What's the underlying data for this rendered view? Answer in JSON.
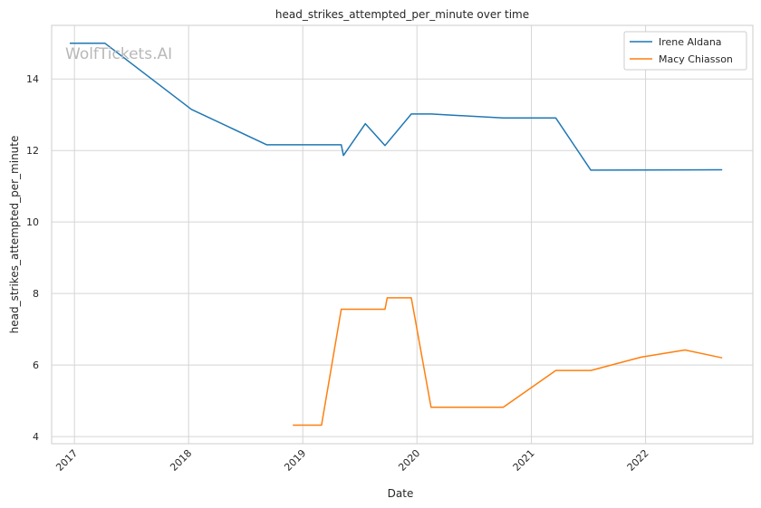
{
  "chart_data": {
    "type": "line",
    "title": "head_strikes_attempted_per_minute over time",
    "xlabel": "Date",
    "ylabel": "head_strikes_attempted_per_minute",
    "watermark": "WolfTickets.AI",
    "x_ticks": [
      "2017",
      "2018",
      "2019",
      "2020",
      "2021",
      "2022"
    ],
    "y_ticks": [
      4,
      6,
      8,
      10,
      12,
      14
    ],
    "xlim": [
      "2016-10-20",
      "2022-12-10"
    ],
    "ylim": [
      3.8,
      15.5
    ],
    "grid": true,
    "legend_position": "top-right",
    "series": [
      {
        "name": "Irene Aldana",
        "color": "#1f77b4",
        "points": [
          [
            "2016-12-17",
            15.0
          ],
          [
            "2017-04-08",
            15.0
          ],
          [
            "2018-01-10",
            13.15
          ],
          [
            "2018-09-08",
            12.16
          ],
          [
            "2019-05-04",
            12.16
          ],
          [
            "2019-05-11",
            11.86
          ],
          [
            "2019-07-20",
            12.75
          ],
          [
            "2019-09-21",
            12.14
          ],
          [
            "2019-12-14",
            13.02
          ],
          [
            "2020-02-15",
            13.02
          ],
          [
            "2020-10-03",
            12.91
          ],
          [
            "2021-03-20",
            12.91
          ],
          [
            "2021-07-10",
            11.45
          ],
          [
            "2022-09-03",
            11.46
          ]
        ]
      },
      {
        "name": "Macy Chiasson",
        "color": "#ff7f0e",
        "points": [
          [
            "2018-11-30",
            4.32
          ],
          [
            "2019-03-02",
            4.32
          ],
          [
            "2019-05-04",
            7.56
          ],
          [
            "2019-09-21",
            7.56
          ],
          [
            "2019-09-28",
            7.88
          ],
          [
            "2019-12-14",
            7.88
          ],
          [
            "2020-02-15",
            4.82
          ],
          [
            "2020-10-03",
            4.82
          ],
          [
            "2021-03-20",
            5.85
          ],
          [
            "2021-07-10",
            5.85
          ],
          [
            "2021-12-18",
            6.22
          ],
          [
            "2022-05-07",
            6.42
          ],
          [
            "2022-09-03",
            6.2
          ]
        ]
      }
    ]
  }
}
